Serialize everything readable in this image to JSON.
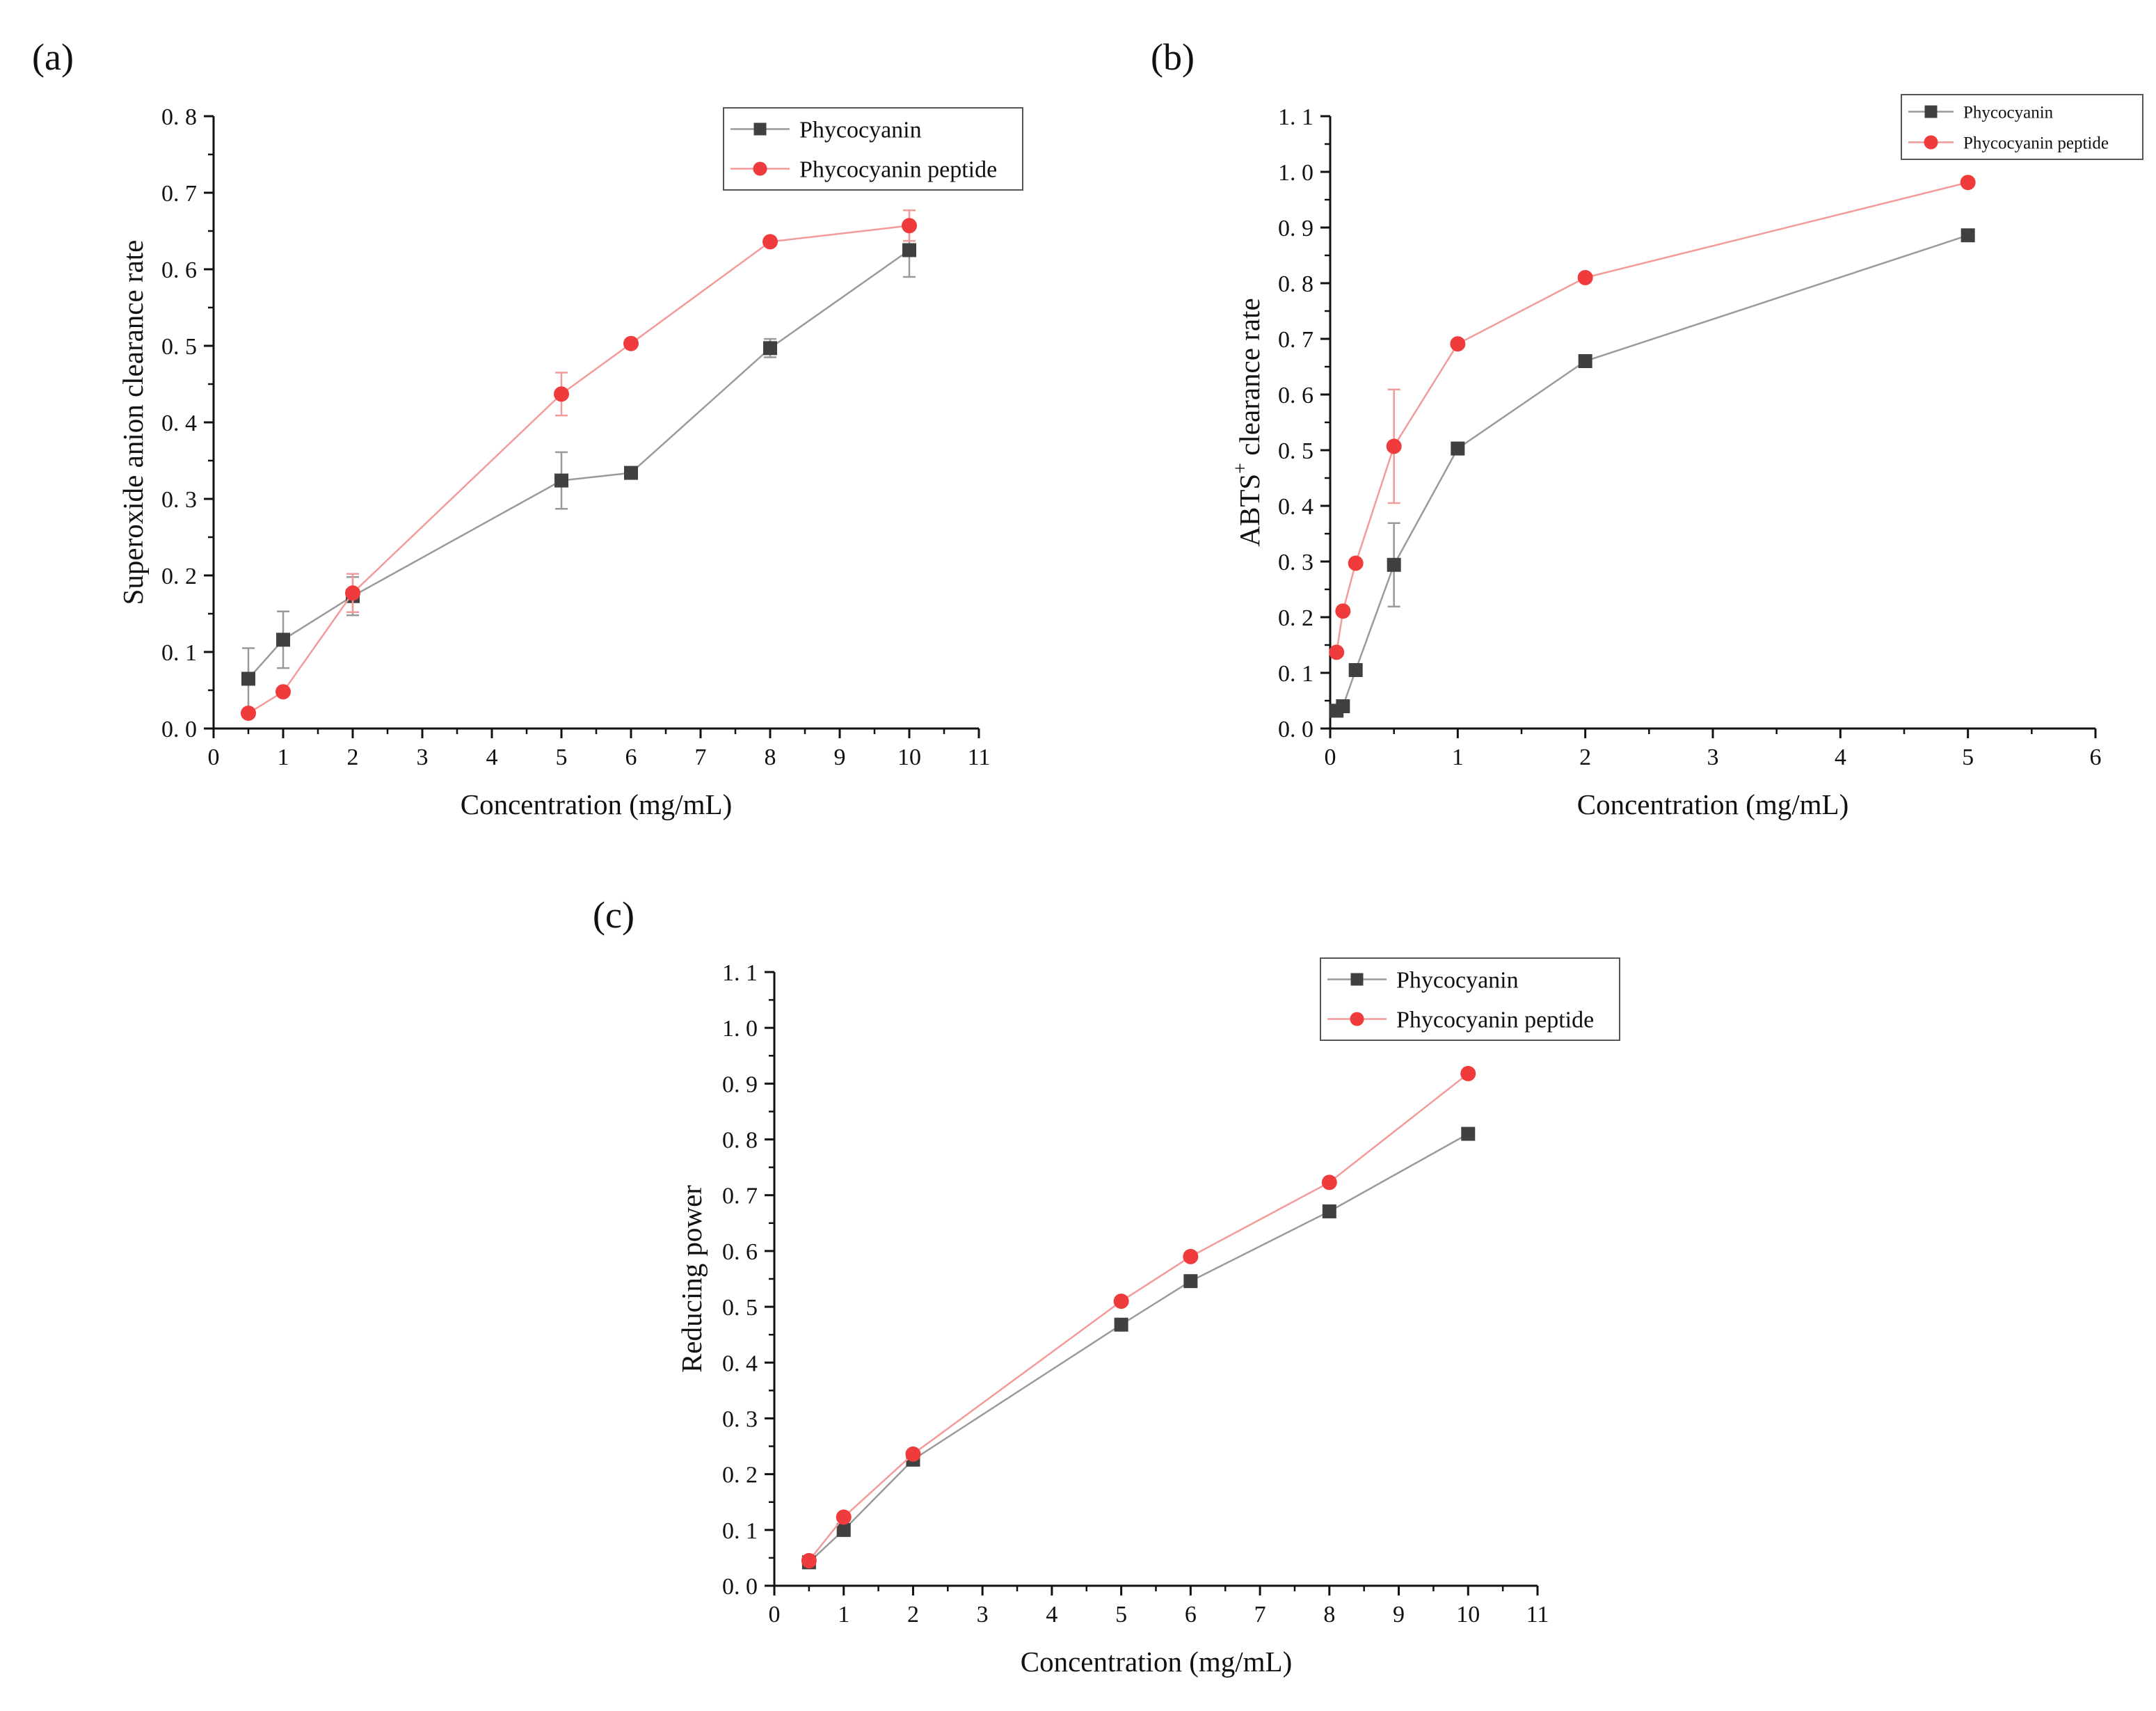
{
  "chart_data": [
    {
      "type": "line",
      "panel_label": "(a)",
      "xlabel": "Concentration (mg/mL)",
      "ylabel": "Superoxide anion clearance rate",
      "xlim": [
        0,
        11
      ],
      "ylim": [
        0,
        0.8
      ],
      "xticks": [
        "0",
        "1",
        "2",
        "3",
        "4",
        "5",
        "6",
        "7",
        "8",
        "9",
        "10",
        "11"
      ],
      "yticks": [
        "0. 0",
        "0. 1",
        "0. 2",
        "0. 3",
        "0. 4",
        "0. 5",
        "0. 6",
        "0. 7",
        "0. 8"
      ],
      "legend": {
        "position": "top-right",
        "entries": [
          "Phycocyanin",
          "Phycocyanin peptide"
        ]
      },
      "series": [
        {
          "name": "Phycocyanin",
          "color": "#404040",
          "line_color": "#9a9a9a",
          "marker": "square",
          "x": [
            0.5,
            1,
            2,
            5,
            6,
            8,
            10
          ],
          "y": [
            0.065,
            0.116,
            0.173,
            0.324,
            0.334,
            0.497,
            0.625
          ],
          "err": [
            0.04,
            0.037,
            0.025,
            0.037,
            0.0,
            0.012,
            0.035
          ]
        },
        {
          "name": "Phycocyanin peptide",
          "color": "#ef3b3b",
          "line_color": "#f39a9a",
          "marker": "circle",
          "x": [
            0.5,
            1,
            2,
            5,
            6,
            8,
            10
          ],
          "y": [
            0.02,
            0.048,
            0.177,
            0.437,
            0.503,
            0.636,
            0.657
          ],
          "err": [
            0.0,
            0.0,
            0.025,
            0.028,
            0.0,
            0.0,
            0.02
          ]
        }
      ]
    },
    {
      "type": "line",
      "panel_label": "(b)",
      "xlabel": "Concentration (mg/mL)",
      "ylabel": "ABTS",
      "ylabel_sup": "+",
      "ylabel_rest": " clearance rate",
      "xlim": [
        0,
        6
      ],
      "ylim": [
        0,
        1.1
      ],
      "xticks": [
        "0",
        "1",
        "2",
        "3",
        "4",
        "5",
        "6"
      ],
      "yticks": [
        "0. 0",
        "0. 1",
        "0. 2",
        "0. 3",
        "0. 4",
        "0. 5",
        "0. 6",
        "0. 7",
        "0. 8",
        "0. 9",
        "1. 0",
        "1. 1"
      ],
      "legend": {
        "position": "top-right",
        "entries": [
          "Phycocyanin",
          "Phycocyanin peptide"
        ]
      },
      "series": [
        {
          "name": "Phycocyanin",
          "color": "#404040",
          "line_color": "#9a9a9a",
          "marker": "square",
          "x": [
            0.05,
            0.1,
            0.2,
            0.5,
            1,
            2,
            5
          ],
          "y": [
            0.032,
            0.04,
            0.105,
            0.294,
            0.503,
            0.66,
            0.886
          ],
          "err": [
            0.0,
            0.0,
            0.0,
            0.075,
            0.0,
            0.0,
            0.0
          ]
        },
        {
          "name": "Phycocyanin peptide",
          "color": "#ef3b3b",
          "line_color": "#f39a9a",
          "marker": "circle",
          "x": [
            0.05,
            0.1,
            0.2,
            0.5,
            1,
            2,
            5
          ],
          "y": [
            0.137,
            0.211,
            0.297,
            0.507,
            0.691,
            0.81,
            0.981
          ],
          "err": [
            0.0,
            0.0,
            0.0,
            0.102,
            0.0,
            0.0,
            0.0
          ]
        }
      ]
    },
    {
      "type": "line",
      "panel_label": "(c)",
      "xlabel": "Concentration (mg/mL)",
      "ylabel": "Reducing power",
      "xlim": [
        0,
        11
      ],
      "ylim": [
        0,
        1.1
      ],
      "xticks": [
        "0",
        "1",
        "2",
        "3",
        "4",
        "5",
        "6",
        "7",
        "8",
        "9",
        "10",
        "11"
      ],
      "yticks": [
        "0. 0",
        "0. 1",
        "0. 2",
        "0. 3",
        "0. 4",
        "0. 5",
        "0. 6",
        "0. 7",
        "0. 8",
        "0. 9",
        "1. 0",
        "1. 1"
      ],
      "legend": {
        "position": "top-right",
        "entries": [
          "Phycocyanin",
          "Phycocyanin peptide"
        ]
      },
      "series": [
        {
          "name": "Phycocyanin",
          "color": "#404040",
          "line_color": "#9a9a9a",
          "marker": "square",
          "x": [
            0.5,
            1,
            2,
            5,
            6,
            8,
            10
          ],
          "y": [
            0.042,
            0.1,
            0.226,
            0.468,
            0.546,
            0.671,
            0.81
          ],
          "err": [
            0,
            0,
            0,
            0,
            0,
            0,
            0
          ]
        },
        {
          "name": "Phycocyanin peptide",
          "color": "#ef3b3b",
          "line_color": "#f39a9a",
          "marker": "circle",
          "x": [
            0.5,
            1,
            2,
            5,
            6,
            8,
            10
          ],
          "y": [
            0.045,
            0.123,
            0.236,
            0.51,
            0.59,
            0.723,
            0.918
          ],
          "err": [
            0,
            0,
            0,
            0,
            0,
            0,
            0
          ]
        }
      ]
    }
  ]
}
